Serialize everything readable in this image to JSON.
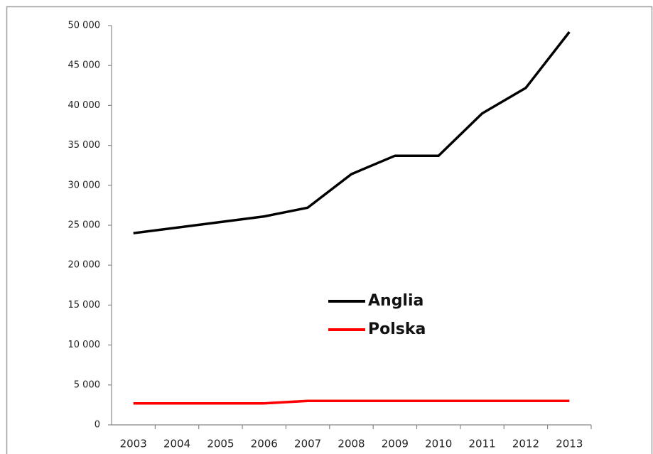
{
  "chart_data": {
    "type": "line",
    "categories": [
      "2003",
      "2004",
      "2005",
      "2006",
      "2007",
      "2008",
      "2009",
      "2010",
      "2011",
      "2012",
      "2013"
    ],
    "series": [
      {
        "name": "Anglia",
        "color": "#000000",
        "values": [
          24000,
          24700,
          25400,
          26100,
          27200,
          31400,
          33700,
          33700,
          39000,
          42200,
          49200
        ]
      },
      {
        "name": "Polska",
        "color": "#ff0000",
        "values": [
          2700,
          2700,
          2700,
          2700,
          3000,
          3000,
          3000,
          3000,
          3000,
          3000,
          3000
        ]
      }
    ],
    "ylim": [
      0,
      50000
    ],
    "yticks": [
      0,
      {
        "value": 5000,
        "label": "5 000"
      },
      {
        "value": 10000,
        "label": "10 000"
      },
      {
        "value": 15000,
        "label": "15 000"
      },
      {
        "value": 20000,
        "label": "20 000"
      },
      {
        "value": 25000,
        "label": "25 000"
      },
      {
        "value": 30000,
        "label": "30 000"
      },
      {
        "value": 35000,
        "label": "35 000"
      },
      {
        "value": 40000,
        "label": "40 000"
      },
      {
        "value": 45000,
        "label": "45 000"
      },
      {
        "value": 50000,
        "label": "50 000"
      }
    ],
    "grid": false
  }
}
